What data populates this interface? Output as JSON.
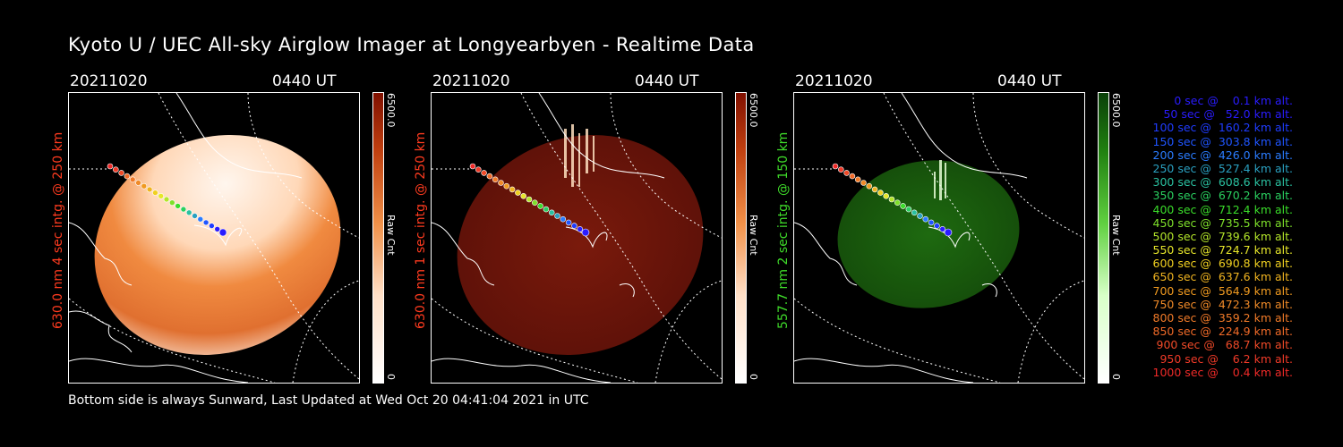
{
  "title": "Kyoto U / UEC All-sky Airglow Imager at Longyearbyen - Realtime Data",
  "footer": "Bottom side is always Sunward, Last Updated at Wed Oct 20 04:41:04 2021 in UTC",
  "panels": [
    {
      "date": "20211020",
      "time": "0440 UT",
      "ylabel": "630.0 nm 4 sec intg. @ 250 km",
      "label_color": "#ff3b1f",
      "cbar_max": "6500.0",
      "cbar_min": "0",
      "cbar_unit": "Raw Cnt",
      "colormap": "orange"
    },
    {
      "date": "20211020",
      "time": "0440 UT",
      "ylabel": "630.0 nm 1 sec intg. @ 250 km",
      "label_color": "#ff3b1f",
      "cbar_max": "6500.0",
      "cbar_min": "0",
      "cbar_unit": "Raw Cnt",
      "colormap": "red"
    },
    {
      "date": "20211020",
      "time": "0440 UT",
      "ylabel": "557.7 nm 2 sec intg. @ 150 km",
      "label_color": "#3fdc2a",
      "cbar_max": "6500.0",
      "cbar_min": "0",
      "cbar_unit": "Raw Cnt",
      "colormap": "green"
    }
  ],
  "trajectory_legend": [
    {
      "text": "   0 sec @    0.1 km alt.",
      "color": "#2a1cff"
    },
    {
      "text": "  50 sec @   52.0 km alt.",
      "color": "#2a1cff"
    },
    {
      "text": " 100 sec @  160.2 km alt.",
      "color": "#1f3cff"
    },
    {
      "text": " 150 sec @  303.8 km alt.",
      "color": "#1f55ff"
    },
    {
      "text": " 200 sec @  426.0 km alt.",
      "color": "#2a7cff"
    },
    {
      "text": " 250 sec @  527.4 km alt.",
      "color": "#2aa0c0"
    },
    {
      "text": " 300 sec @  608.6 km alt.",
      "color": "#2ac0a0"
    },
    {
      "text": " 350 sec @  670.2 km alt.",
      "color": "#2ad060"
    },
    {
      "text": " 400 sec @  712.4 km alt.",
      "color": "#3adc2a"
    },
    {
      "text": " 450 sec @  735.5 km alt.",
      "color": "#7ee02a"
    },
    {
      "text": " 500 sec @  739.6 km alt.",
      "color": "#b4e62a"
    },
    {
      "text": " 550 sec @  724.7 km alt.",
      "color": "#e6e62a"
    },
    {
      "text": " 600 sec @  690.8 km alt.",
      "color": "#f0d020"
    },
    {
      "text": " 650 sec @  637.6 km alt.",
      "color": "#f0b420"
    },
    {
      "text": " 700 sec @  564.9 km alt.",
      "color": "#f09a20"
    },
    {
      "text": " 750 sec @  472.3 km alt.",
      "color": "#f08a28"
    },
    {
      "text": " 800 sec @  359.2 km alt.",
      "color": "#f07a28"
    },
    {
      "text": " 850 sec @  224.9 km alt.",
      "color": "#f06a28"
    },
    {
      "text": " 900 sec @   68.7 km alt.",
      "color": "#f04a28"
    },
    {
      "text": " 950 sec @    6.2 km alt.",
      "color": "#f03a28"
    },
    {
      "text": "1000 sec @    0.4 km alt.",
      "color": "#f02a28"
    }
  ]
}
